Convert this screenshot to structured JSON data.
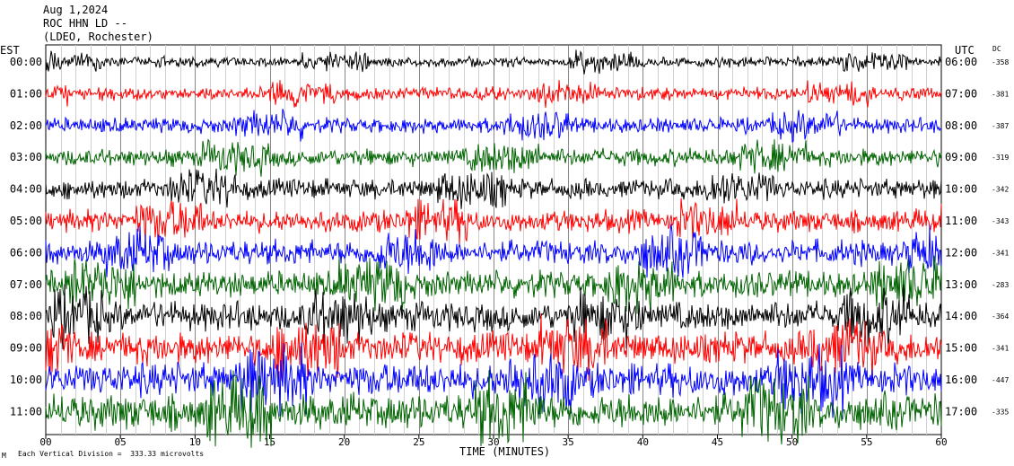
{
  "header": {
    "date": "Aug 1,2024",
    "station": "ROC HHN LD --",
    "network": "(LDEO, Rochester)"
  },
  "left_axis_title": "EST",
  "right_axis_title": "UTC",
  "dc_title": "DC",
  "xlabel": "TIME (MINUTES)",
  "footer_note": "Each Vertical Division =  333.33 microvolts",
  "footer_mark": "M",
  "chart_data": {
    "type": "line",
    "title": "",
    "xlabel": "TIME (MINUTES)",
    "xlim": [
      0,
      60
    ],
    "x_ticks": [
      "00",
      "05",
      "10",
      "15",
      "20",
      "25",
      "30",
      "35",
      "40",
      "45",
      "50",
      "55",
      "60"
    ],
    "grid": true,
    "rows": [
      {
        "est": "00:00",
        "utc": "06:00",
        "dc": "-358",
        "color": "#000000"
      },
      {
        "est": "01:00",
        "utc": "07:00",
        "dc": "-381",
        "color": "#ff0000"
      },
      {
        "est": "02:00",
        "utc": "08:00",
        "dc": "-387",
        "color": "#0000ff"
      },
      {
        "est": "03:00",
        "utc": "09:00",
        "dc": "-319",
        "color": "#006400"
      },
      {
        "est": "04:00",
        "utc": "10:00",
        "dc": "-342",
        "color": "#000000"
      },
      {
        "est": "05:00",
        "utc": "11:00",
        "dc": "-343",
        "color": "#ff0000"
      },
      {
        "est": "06:00",
        "utc": "12:00",
        "dc": "-341",
        "color": "#0000ff"
      },
      {
        "est": "07:00",
        "utc": "13:00",
        "dc": "-283",
        "color": "#006400"
      },
      {
        "est": "08:00",
        "utc": "14:00",
        "dc": "-364",
        "color": "#000000"
      },
      {
        "est": "09:00",
        "utc": "15:00",
        "dc": "-341",
        "color": "#ff0000"
      },
      {
        "est": "10:00",
        "utc": "16:00",
        "dc": "-447",
        "color": "#0000ff"
      },
      {
        "est": "11:00",
        "utc": "17:00",
        "dc": "-335",
        "color": "#006400"
      }
    ]
  }
}
